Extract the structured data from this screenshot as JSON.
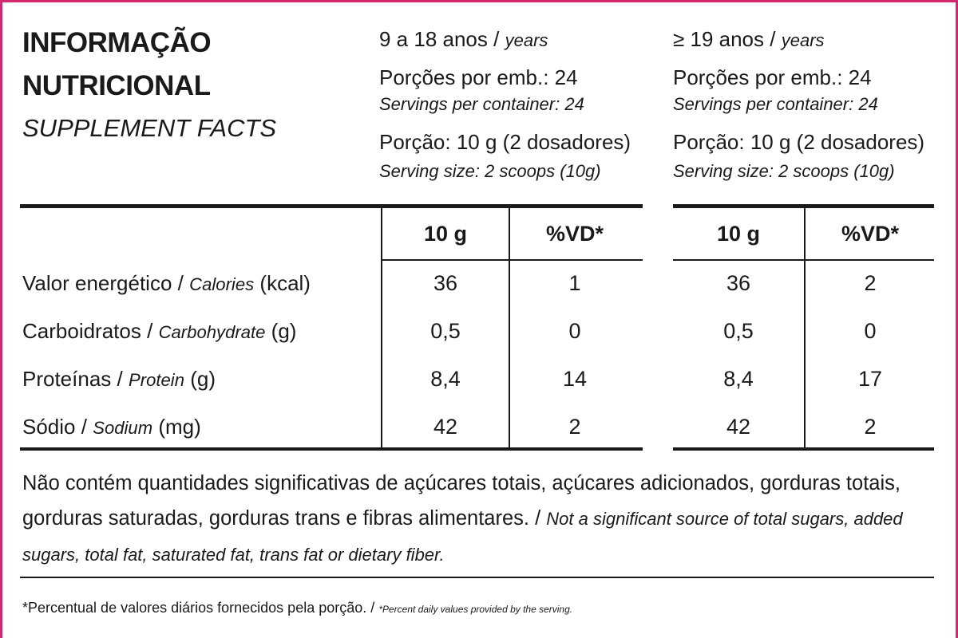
{
  "header": {
    "title_lines": [
      "INFORMAÇÃO",
      "NUTRICIONAL"
    ],
    "subtitle": "SUPPLEMENT FACTS"
  },
  "separator": "/",
  "groups": [
    {
      "age_pt": "9 a 18 anos",
      "age_en": "years",
      "servings_pt": "Porções por emb.: 24",
      "servings_en": "Servings per container: 24",
      "portion_pt": "Porção: 10 g (2 dosadores)",
      "portion_en": "Serving size: 2 scoops (10g)",
      "columns": [
        "10 g",
        "%VD*"
      ],
      "values": [
        [
          "36",
          "1"
        ],
        [
          "0,5",
          "0"
        ],
        [
          "8,4",
          "14"
        ],
        [
          "42",
          "2"
        ]
      ]
    },
    {
      "age_pt": "≥ 19 anos",
      "age_en": "years",
      "servings_pt": "Porções por emb.: 24",
      "servings_en": "Servings per container: 24",
      "portion_pt": "Porção: 10 g (2 dosadores)",
      "portion_en": "Serving size: 2 scoops (10g)",
      "columns": [
        "10 g",
        "%VD*"
      ],
      "values": [
        [
          "36",
          "2"
        ],
        [
          "0,5",
          "0"
        ],
        [
          "8,4",
          "17"
        ],
        [
          "42",
          "2"
        ]
      ]
    }
  ],
  "rows": [
    {
      "pt": "Valor energético",
      "en": "Calories",
      "unit": "(kcal)"
    },
    {
      "pt": "Carboidratos",
      "en": "Carbohydrate",
      "unit": "(g)"
    },
    {
      "pt": "Proteínas",
      "en": "Protein",
      "unit": "(g)"
    },
    {
      "pt": "Sódio",
      "en": "Sodium",
      "unit": "(mg)"
    }
  ],
  "note": {
    "pt": "Não contém quantidades significativas de açúcares totais, açúcares adicionados, gorduras totais, gorduras saturadas, gorduras trans e fibras alimentares.",
    "en": "Not a significant source of total sugars, added sugars, total fat, saturated fat, trans fat or dietary fiber."
  },
  "footnote": {
    "pt": "*Percentual de valores diários fornecidos pela porção.",
    "en": "*Percent daily values provided by the serving."
  }
}
